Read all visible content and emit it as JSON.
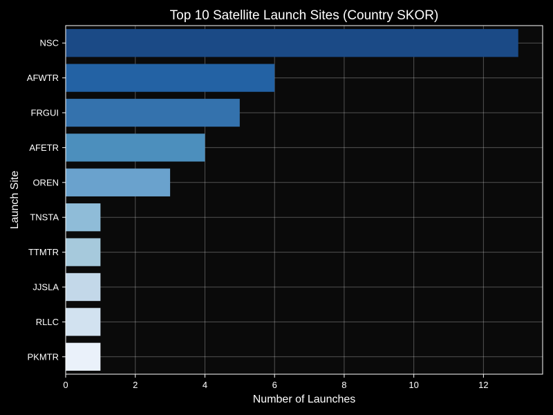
{
  "chart_data": {
    "type": "bar",
    "orientation": "horizontal",
    "title": "Top 10 Satellite Launch Sites (Country SKOR)",
    "xlabel": "Number of Launches",
    "ylabel": "Launch Site",
    "categories": [
      "NSC",
      "AFWTR",
      "FRGUI",
      "AFETR",
      "OREN",
      "TNSTA",
      "TTMTR",
      "JJSLA",
      "RLLC",
      "PKMTR"
    ],
    "values": [
      13,
      6,
      5,
      4,
      3,
      1,
      1,
      1,
      1,
      1
    ],
    "bar_colors": [
      "#1b4a86",
      "#2362a4",
      "#3472ad",
      "#4c8fbd",
      "#6aa2cd",
      "#8fbcd8",
      "#a6c9dc",
      "#c3d8e9",
      "#d2e2f0",
      "#eaf1fa"
    ],
    "xlim": [
      0,
      13.7
    ],
    "xticks": [
      0,
      2,
      4,
      6,
      8,
      10,
      12
    ],
    "grid": true,
    "background": "#000000",
    "text_color": "#ffffff"
  }
}
